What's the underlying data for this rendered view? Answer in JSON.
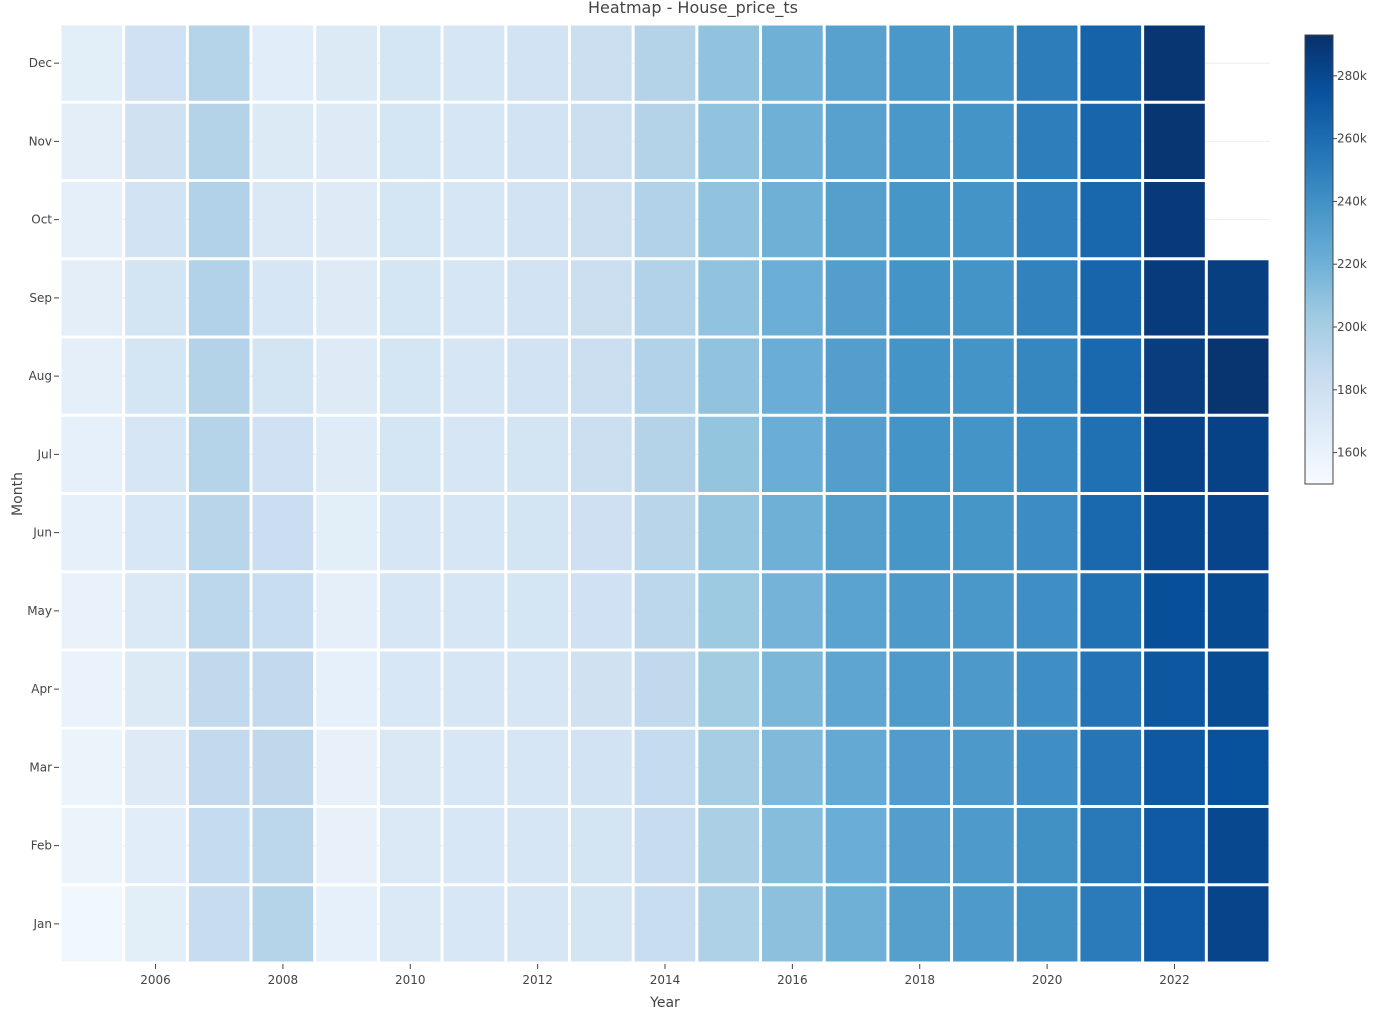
{
  "chart_data": {
    "type": "heatmap",
    "title": "Heatmap - House_price_ts",
    "xlabel": "Year",
    "ylabel": "Month",
    "x": [
      2005,
      2006,
      2007,
      2008,
      2009,
      2010,
      2011,
      2012,
      2013,
      2014,
      2015,
      2016,
      2017,
      2018,
      2019,
      2020,
      2021,
      2022,
      2023
    ],
    "x_tick_labels": [
      "2006",
      "2008",
      "2010",
      "2012",
      "2014",
      "2016",
      "2018",
      "2020",
      "2022"
    ],
    "y": [
      "Jan",
      "Feb",
      "Mar",
      "Apr",
      "May",
      "Jun",
      "Jul",
      "Aug",
      "Sep",
      "Oct",
      "Nov",
      "Dec"
    ],
    "z": [
      [
        155000,
        158000,
        158000,
        159000,
        160000,
        162000,
        162000,
        163000,
        164000,
        163000,
        164000,
        165000
      ],
      [
        165000,
        166000,
        168000,
        169000,
        170000,
        172000,
        174000,
        175000,
        176000,
        177000,
        178000,
        179000
      ],
      [
        185000,
        186000,
        187000,
        188000,
        190000,
        192000,
        193000,
        194000,
        195000,
        195000,
        194000,
        193000
      ],
      [
        193000,
        190000,
        189000,
        187000,
        184000,
        182000,
        179000,
        176000,
        173000,
        171000,
        169000,
        166000
      ],
      [
        162000,
        161000,
        161000,
        162000,
        163000,
        165000,
        167000,
        168000,
        168000,
        168000,
        168000,
        169000
      ],
      [
        170000,
        170000,
        171000,
        172000,
        173000,
        174000,
        175000,
        175000,
        175000,
        175000,
        175000,
        175000
      ],
      [
        172000,
        172000,
        172000,
        173000,
        173000,
        174000,
        174000,
        174000,
        174000,
        174000,
        174000,
        174000
      ],
      [
        173000,
        173000,
        173000,
        174000,
        175000,
        176000,
        176000,
        177000,
        177000,
        177000,
        177000,
        177000
      ],
      [
        176000,
        176000,
        177000,
        178000,
        179000,
        180000,
        181000,
        181000,
        181000,
        181000,
        181000,
        181000
      ],
      [
        184000,
        185000,
        186000,
        188000,
        190000,
        192000,
        194000,
        195000,
        195000,
        195000,
        194000,
        194000
      ],
      [
        196000,
        198000,
        200000,
        202000,
        204000,
        206000,
        207000,
        208000,
        208000,
        208000,
        208000,
        208000
      ],
      [
        210000,
        212000,
        214000,
        216000,
        218000,
        220000,
        222000,
        222000,
        221000,
        220000,
        220000,
        220000
      ],
      [
        220000,
        222000,
        225000,
        227000,
        229000,
        231000,
        232000,
        232000,
        232000,
        231000,
        230000,
        230000
      ],
      [
        231000,
        232000,
        233000,
        234000,
        235000,
        237000,
        238000,
        238000,
        238000,
        237000,
        236000,
        236000
      ],
      [
        234000,
        234000,
        235000,
        235000,
        236000,
        237000,
        238000,
        238000,
        238000,
        238000,
        238000,
        238000
      ],
      [
        240000,
        240000,
        241000,
        241000,
        241000,
        242000,
        244000,
        246000,
        248000,
        249000,
        250000,
        251000
      ],
      [
        252000,
        253000,
        255000,
        256000,
        257000,
        262000,
        258000,
        262000,
        264000,
        263000,
        264000,
        265000
      ],
      [
        270000,
        270000,
        271000,
        272000,
        276000,
        280000,
        283000,
        286000,
        287000,
        288000,
        290000,
        290000
      ],
      [
        282000,
        280000,
        275000,
        278000,
        279000,
        282000,
        283000,
        291000,
        285000,
        null,
        null,
        null
      ]
    ],
    "colorscale": [
      [
        0,
        "#f7fbff"
      ],
      [
        0.125,
        "#deebf7"
      ],
      [
        0.25,
        "#c6dbef"
      ],
      [
        0.375,
        "#9ecae1"
      ],
      [
        0.5,
        "#6baed6"
      ],
      [
        0.625,
        "#4292c6"
      ],
      [
        0.75,
        "#2171b5"
      ],
      [
        0.875,
        "#08519c"
      ],
      [
        1,
        "#08306b"
      ]
    ],
    "zmin": 150000,
    "zmax": 293000,
    "colorbar_ticks": [
      160000,
      180000,
      200000,
      220000,
      240000,
      260000,
      280000
    ],
    "colorbar_tick_labels": [
      "160k",
      "180k",
      "200k",
      "220k",
      "240k",
      "260k",
      "280k"
    ],
    "grid": true,
    "legend": "right"
  }
}
